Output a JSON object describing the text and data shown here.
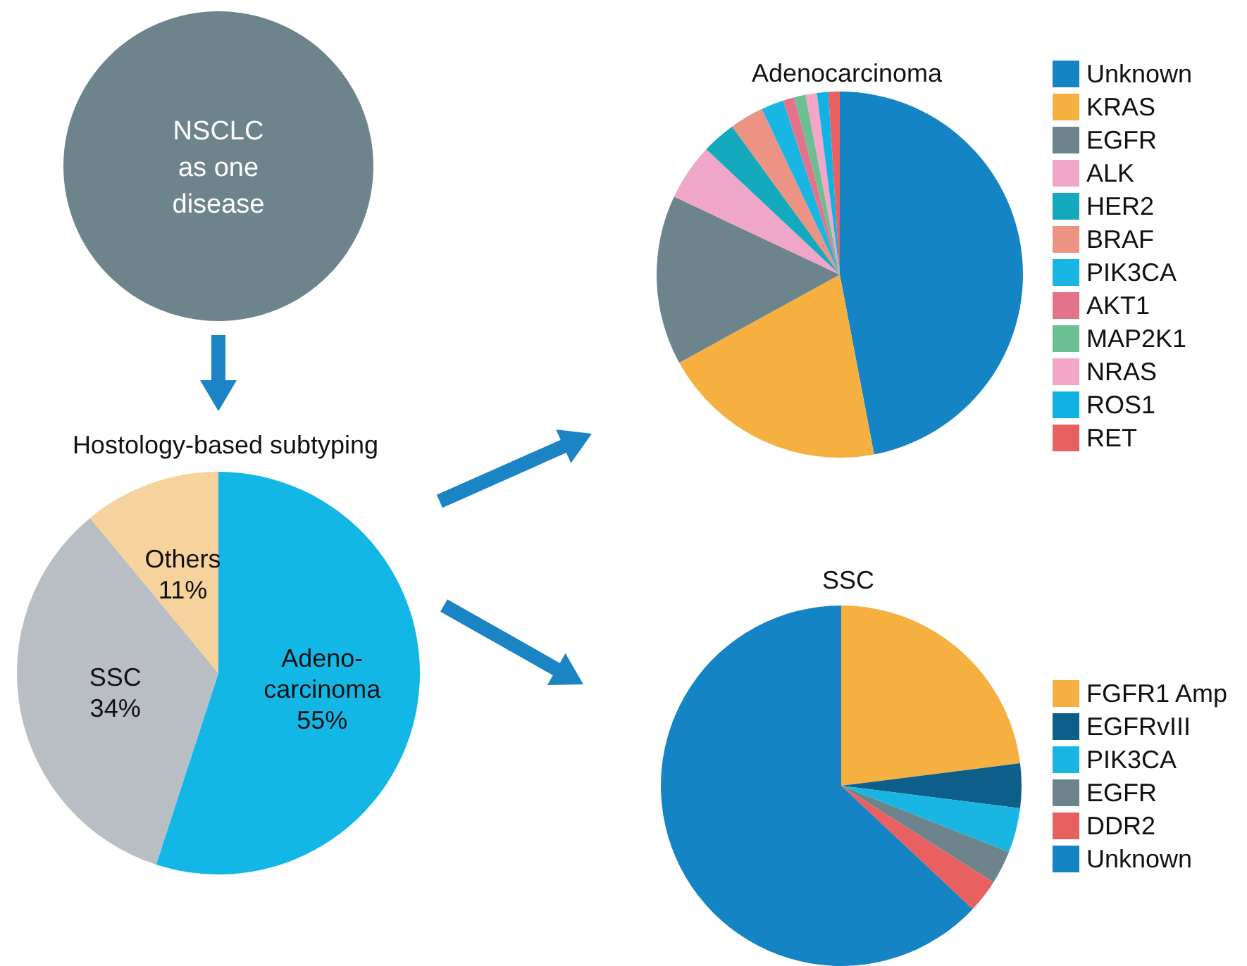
{
  "chart_data": [
    {
      "type": "pie",
      "title": "Hostology-based subtyping",
      "categories": [
        "Adeno-\ncarcinoma",
        "SSC",
        "Others"
      ],
      "values": [
        55,
        34,
        11
      ],
      "value_labels": [
        "55%",
        "34%",
        "11%"
      ],
      "colors": [
        "#13b7e6",
        "#b9bec4",
        "#f6d29c"
      ],
      "legend": false,
      "annotations": [
        "NSCLC\nas one\ndisease"
      ]
    },
    {
      "type": "pie",
      "title": "Adenocarcinoma",
      "categories": [
        "Unknown",
        "KRAS",
        "EGFR",
        "ALK",
        "HER2",
        "BRAF",
        "PIK3CA",
        "AKT1",
        "MAP2K1",
        "NRAS",
        "ROS1",
        "RET"
      ],
      "values": [
        47,
        20,
        15,
        5,
        3,
        3,
        2,
        1,
        1,
        1,
        1,
        1
      ],
      "colors": [
        "#1484c4",
        "#f6b040",
        "#6e848c",
        "#f0a6c8",
        "#14a9bd",
        "#ec9384",
        "#19b6e4",
        "#e3728b",
        "#6cbf93",
        "#f4a6c9",
        "#0fb2e3",
        "#e8605f"
      ],
      "legend": "right"
    },
    {
      "type": "pie",
      "title": "SSC",
      "categories": [
        "FGFR1 Amp",
        "EGFRvIII",
        "PIK3CA",
        "EGFR",
        "DDR2",
        "Unknown"
      ],
      "values": [
        23,
        4,
        4,
        3,
        3,
        63
      ],
      "colors": [
        "#f6b040",
        "#0d5f8a",
        "#19b6e4",
        "#6e848c",
        "#e8605f",
        "#1484c4"
      ],
      "legend": "right"
    }
  ]
}
